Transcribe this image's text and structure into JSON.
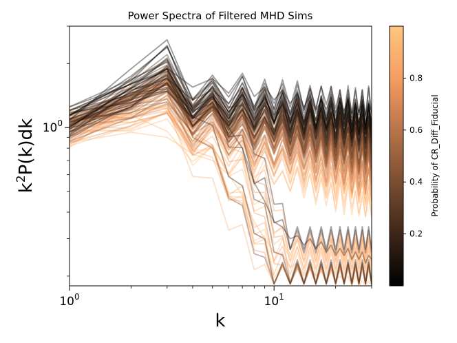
{
  "chart_data": {
    "type": "line",
    "title": "Power Spectra of Filtered MHD Sims",
    "xlabel": "k",
    "ylabel_base": "k",
    "ylabel_sup": "2",
    "ylabel_rest": "P(k)dk",
    "xscale": "log",
    "yscale": "log",
    "xlim": [
      1,
      30
    ],
    "ylim": [
      0.18,
      3.0
    ],
    "x_major_ticks": [
      {
        "value": 1,
        "base": "10",
        "exp": "0"
      },
      {
        "value": 10,
        "base": "10",
        "exp": "1"
      }
    ],
    "y_major_ticks": [
      {
        "value": 1,
        "base": "10",
        "exp": "0"
      }
    ],
    "colorbar": {
      "label": "Probability of CR_Diff_Fiducial",
      "range": [
        0.0,
        1.0
      ],
      "ticks": [
        "0.2",
        "0.4",
        "0.6",
        "0.8"
      ],
      "colormap": "copper"
    },
    "line_alpha": 0.4,
    "series_summary": {
      "count": 90,
      "x": [
        1,
        2,
        3,
        4,
        5,
        6,
        7,
        8,
        9,
        10,
        11,
        12,
        13,
        14,
        15,
        16,
        17,
        18,
        19,
        20,
        21,
        22,
        23,
        24,
        25,
        26,
        27,
        28,
        29,
        30
      ],
      "description_values": "Each series is one filtered MHD simulation; values start near 0.9-1.3 at k=1, peak near k=2-3 and oscillate (zigzag) toward k=30. A subset of high-probability (light orange) and some low-probability (dark) spectra fall steeply after k~5 to ~0.2-0.3 at k=30.",
      "representative_series": [
        {
          "probability": 0.05,
          "values": [
            1.25,
            1.6,
            1.9,
            1.55,
            1.7,
            1.45,
            1.8,
            1.4,
            1.55,
            1.35,
            1.5,
            1.3,
            1.45,
            1.25,
            1.4,
            1.2,
            1.35,
            1.22,
            1.38,
            1.18,
            1.32,
            1.2,
            1.35,
            1.16,
            1.3,
            1.18,
            1.33,
            1.15,
            1.3,
            1.2
          ]
        },
        {
          "probability": 0.1,
          "values": [
            1.15,
            1.45,
            1.7,
            1.35,
            1.5,
            1.3,
            1.55,
            1.2,
            1.35,
            1.15,
            1.28,
            1.1,
            1.22,
            1.05,
            1.18,
            1.02,
            1.15,
            1.0,
            1.12,
            0.98,
            1.1,
            0.96,
            1.08,
            0.95,
            1.06,
            0.94,
            1.05,
            0.93,
            1.04,
            0.95
          ]
        },
        {
          "probability": 0.15,
          "values": [
            1.1,
            1.35,
            1.55,
            1.2,
            1.3,
            1.0,
            0.8,
            0.55,
            0.45,
            0.36,
            0.34,
            0.3,
            0.31,
            0.28,
            0.3,
            0.27,
            0.29,
            0.26,
            0.28,
            0.25,
            0.27,
            0.25,
            0.27,
            0.24,
            0.26,
            0.24,
            0.26,
            0.23,
            0.25,
            0.24
          ]
        },
        {
          "probability": 0.9,
          "values": [
            0.85,
            0.95,
            0.9,
            0.75,
            0.7,
            0.6,
            0.48,
            0.36,
            0.3,
            0.26,
            0.25,
            0.22,
            0.23,
            0.2,
            0.22,
            0.2,
            0.21,
            0.19,
            0.21,
            0.19,
            0.2,
            0.19,
            0.2,
            0.18,
            0.2,
            0.18,
            0.19,
            0.18,
            0.19,
            0.18
          ]
        }
      ]
    }
  }
}
